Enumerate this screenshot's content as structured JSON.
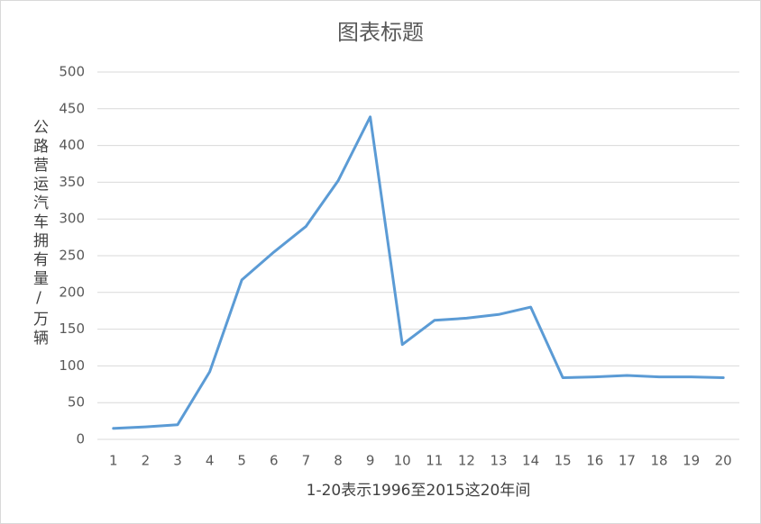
{
  "chart_data": {
    "type": "line",
    "title": "图表标题",
    "x_label": "1-20表示1996至2015这20年间",
    "y_label": "公路营运汽车拥有量/万辆",
    "categories": [
      "1",
      "2",
      "3",
      "4",
      "5",
      "6",
      "7",
      "8",
      "9",
      "10",
      "11",
      "12",
      "13",
      "14",
      "15",
      "16",
      "17",
      "18",
      "19",
      "20"
    ],
    "series": [
      {
        "name": "公路营运汽车拥有量",
        "color": "#5b9bd5",
        "values": [
          15,
          17,
          20,
          92,
          217,
          255,
          290,
          352,
          439,
          129,
          162,
          165,
          170,
          180,
          84,
          85,
          87,
          85,
          85,
          84
        ]
      }
    ],
    "ylim": [
      0,
      500
    ],
    "yticks": [
      0,
      50,
      100,
      150,
      200,
      250,
      300,
      350,
      400,
      450,
      500
    ],
    "grid": true
  }
}
